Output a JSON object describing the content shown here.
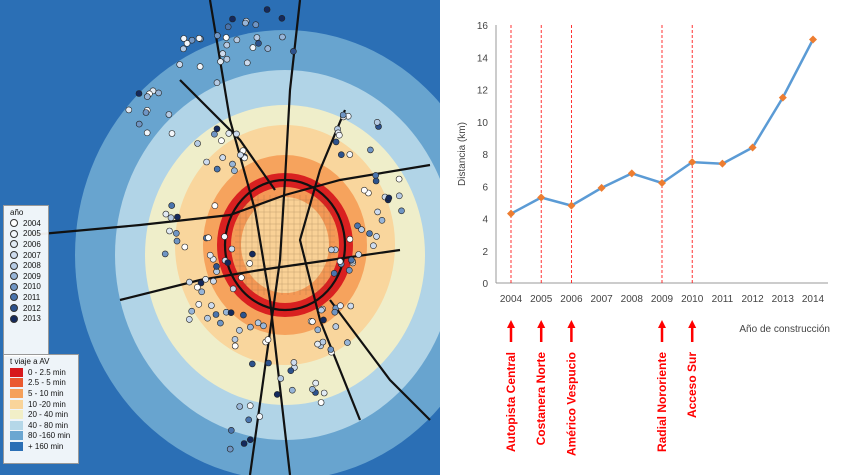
{
  "map": {
    "year_legend": {
      "title": "año",
      "items": [
        {
          "label": "2004",
          "color": "#ffffff"
        },
        {
          "label": "2005",
          "color": "#f2f6fb"
        },
        {
          "label": "2006",
          "color": "#e1eaf4"
        },
        {
          "label": "2007",
          "color": "#cddbee"
        },
        {
          "label": "2008",
          "color": "#b6cbe4"
        },
        {
          "label": "2009",
          "color": "#97b5d8"
        },
        {
          "label": "2010",
          "color": "#6f95c4"
        },
        {
          "label": "2011",
          "color": "#4a74ad"
        },
        {
          "label": "2012",
          "color": "#2d528d"
        },
        {
          "label": "2013",
          "color": "#14295c"
        }
      ]
    },
    "travel_time_legend": {
      "title": "t viaje a AV",
      "items": [
        {
          "label": "0 - 2.5 min",
          "color": "#d7191c"
        },
        {
          "label": "2.5 - 5 min",
          "color": "#ea5a30"
        },
        {
          "label": "5 - 10 min",
          "color": "#f5a05a"
        },
        {
          "label": "10 -20 min",
          "color": "#f9d49a"
        },
        {
          "label": "20 - 40 min",
          "color": "#f2efc8"
        },
        {
          "label": "40 - 80 min",
          "color": "#b5d7e8"
        },
        {
          "label": "80 -160 min",
          "color": "#6ba6d1"
        },
        {
          "label": "+ 160 min",
          "color": "#2b6fb5"
        }
      ]
    }
  },
  "chart_data": {
    "type": "line",
    "title": "",
    "xlabel": "Año de construcción",
    "ylabel": "Distancia (km)",
    "x": [
      2004,
      2005,
      2006,
      2007,
      2008,
      2009,
      2010,
      2011,
      2012,
      2013,
      2014
    ],
    "y": [
      4.3,
      5.3,
      4.8,
      5.9,
      6.8,
      6.2,
      7.5,
      7.4,
      8.4,
      11.5,
      15.1
    ],
    "ylim": [
      0,
      16
    ],
    "yticks": [
      0,
      2,
      4,
      6,
      8,
      10,
      12,
      14,
      16
    ],
    "line_color": "#5b9bd5",
    "marker_color": "#ed7d31",
    "grid": false,
    "annotations": [
      {
        "x": 2004,
        "label": "Autopista Central"
      },
      {
        "x": 2005,
        "label": "Costanera Norte"
      },
      {
        "x": 2006,
        "label": "Américo Vespucio"
      },
      {
        "x": 2009,
        "label": "Radial Nororiente"
      },
      {
        "x": 2010,
        "label": "Acceso Sur"
      }
    ],
    "annotation_color": "#ff0000"
  }
}
